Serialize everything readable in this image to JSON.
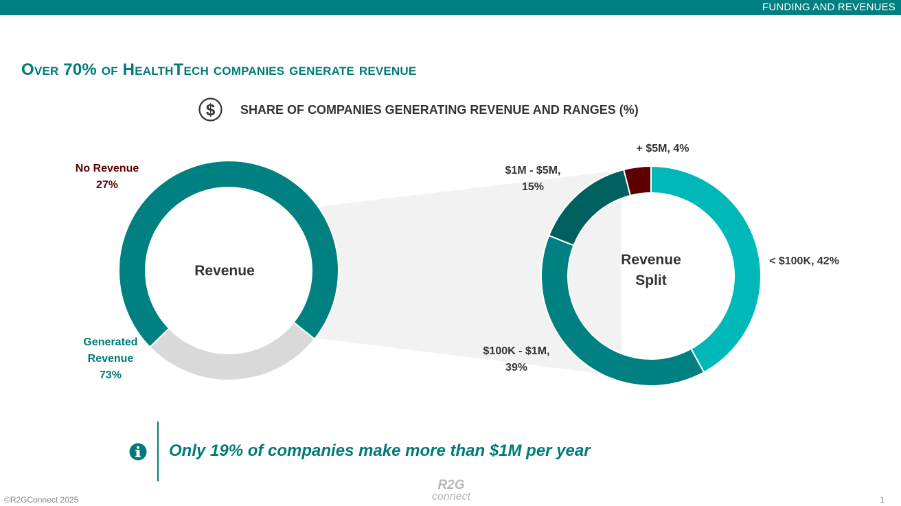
{
  "header": {
    "section": "FUNDING AND REVENUES"
  },
  "title": "Over 70% of HealthTech companies generate revenue",
  "subtitle": "SHARE OF COMPANIES GENERATING REVENUE AND RANGES (%)",
  "colors": {
    "teal": "#008080",
    "dark_teal": "#006060",
    "light_teal": "#00b8b8",
    "gray": "#d9d9d9",
    "maroon": "#5c0000",
    "connector": "#f2f2f2"
  },
  "chart_data": [
    {
      "type": "pie",
      "donut": true,
      "title": "Revenue",
      "categories": [
        "Generated Revenue",
        "No Revenue"
      ],
      "values": [
        73,
        27
      ],
      "labels": {
        "no_revenue": [
          "No Revenue",
          "27%"
        ],
        "generated": [
          "Generated",
          "Revenue",
          "73%"
        ]
      }
    },
    {
      "type": "pie",
      "donut": true,
      "title": "Revenue Split",
      "title_lines": [
        "Revenue",
        "Split"
      ],
      "categories": [
        "< $100K",
        "$100K - $1M",
        "$1M - $5M",
        "+ $5M"
      ],
      "values": [
        42,
        39,
        15,
        4
      ],
      "labels": {
        "lt100k": "< $100K, 42%",
        "100k_1m": [
          "$100K - $1M,",
          "39%"
        ],
        "1m_5m": [
          "$1M - $5M,",
          "15%"
        ],
        "gt5m": "+ $5M, 4%"
      }
    }
  ],
  "note": "Only 19% of companies make more than $1M per year",
  "footer": {
    "copyright": "©R2GConnect 2025",
    "logo_line1": "R2G",
    "logo_line2": "connect",
    "page_number": "1"
  }
}
